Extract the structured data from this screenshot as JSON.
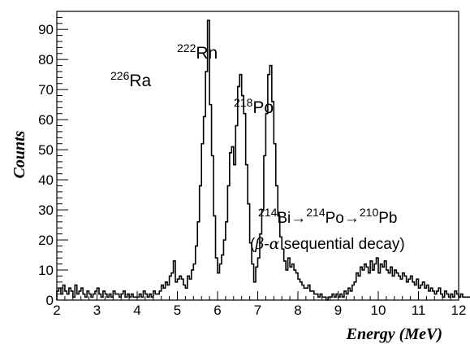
{
  "chart_data": {
    "type": "histogram",
    "xlabel": "Energy (MeV)",
    "ylabel": "Counts",
    "xlim": [
      2,
      12
    ],
    "ylim": [
      0,
      96
    ],
    "x_ticks": [
      "2",
      "3",
      "4",
      "5",
      "6",
      "7",
      "8",
      "9",
      "10",
      "11",
      "12"
    ],
    "y_ticks": [
      "0",
      "10",
      "20",
      "30",
      "40",
      "50",
      "60",
      "70",
      "80",
      "90"
    ],
    "bin_width": 0.05,
    "series": [
      {
        "values": [
          3,
          4,
          2,
          5,
          3,
          2,
          4,
          3,
          1,
          5,
          2,
          3,
          4,
          2,
          1,
          3,
          2,
          1,
          2,
          3,
          4,
          2,
          1,
          3,
          2,
          1,
          2,
          1,
          3,
          2,
          2,
          1,
          2,
          3,
          1,
          2,
          1,
          2,
          1,
          1,
          1,
          2,
          1,
          3,
          2,
          1,
          2,
          1,
          3,
          2,
          2,
          3,
          5,
          4,
          6,
          5,
          8,
          9,
          13,
          6,
          7,
          8,
          7,
          5,
          4,
          8,
          7,
          10,
          12,
          18,
          26,
          38,
          52,
          61,
          76,
          93,
          65,
          48,
          28,
          14,
          9,
          12,
          15,
          20,
          26,
          38,
          49,
          51,
          45,
          58,
          71,
          75,
          68,
          62,
          45,
          32,
          19,
          12,
          6,
          11,
          14,
          22,
          30,
          48,
          62,
          75,
          78,
          66,
          52,
          38,
          28,
          21,
          17,
          13,
          10,
          14,
          11,
          12,
          10,
          9,
          7,
          6,
          5,
          4,
          4,
          5,
          3,
          3,
          2,
          2,
          1,
          2,
          1,
          1,
          0,
          1,
          1,
          2,
          1,
          2,
          1,
          2,
          1,
          3,
          2,
          4,
          3,
          5,
          6,
          9,
          8,
          11,
          10,
          12,
          11,
          9,
          13,
          10,
          12,
          14,
          9,
          12,
          11,
          13,
          10,
          9,
          11,
          8,
          10,
          9,
          8,
          7,
          9,
          8,
          6,
          7,
          8,
          6,
          5,
          7,
          4,
          5,
          6,
          4,
          5,
          3,
          4,
          3,
          2,
          3,
          4,
          2,
          1,
          3,
          2,
          1,
          2,
          1,
          3,
          2,
          1,
          2,
          1,
          1,
          1,
          1,
          2,
          1,
          0,
          1,
          2,
          1,
          1,
          1,
          0,
          1,
          1,
          0,
          0,
          1,
          0,
          1,
          0,
          1,
          1
        ]
      }
    ],
    "annotations": [
      {
        "id": "ra",
        "parts": [
          {
            "sup": "226"
          },
          {
            "text": "Ra"
          }
        ]
      },
      {
        "id": "rn",
        "parts": [
          {
            "sup": "222"
          },
          {
            "text": "Rn"
          }
        ]
      },
      {
        "id": "po",
        "parts": [
          {
            "sup": "218"
          },
          {
            "text": "Po"
          }
        ]
      },
      {
        "id": "chain",
        "parts": [
          {
            "sup": "214"
          },
          {
            "text": "Bi→"
          },
          {
            "sup": "214"
          },
          {
            "text": "Po→"
          },
          {
            "sup": "210"
          },
          {
            "text": "Pb"
          }
        ]
      },
      {
        "id": "decay",
        "parts": [
          {
            "text": "("
          },
          {
            "italic": "β"
          },
          {
            "text": "-"
          },
          {
            "italic": "α"
          },
          {
            "text": " sequential decay)"
          }
        ]
      }
    ]
  }
}
